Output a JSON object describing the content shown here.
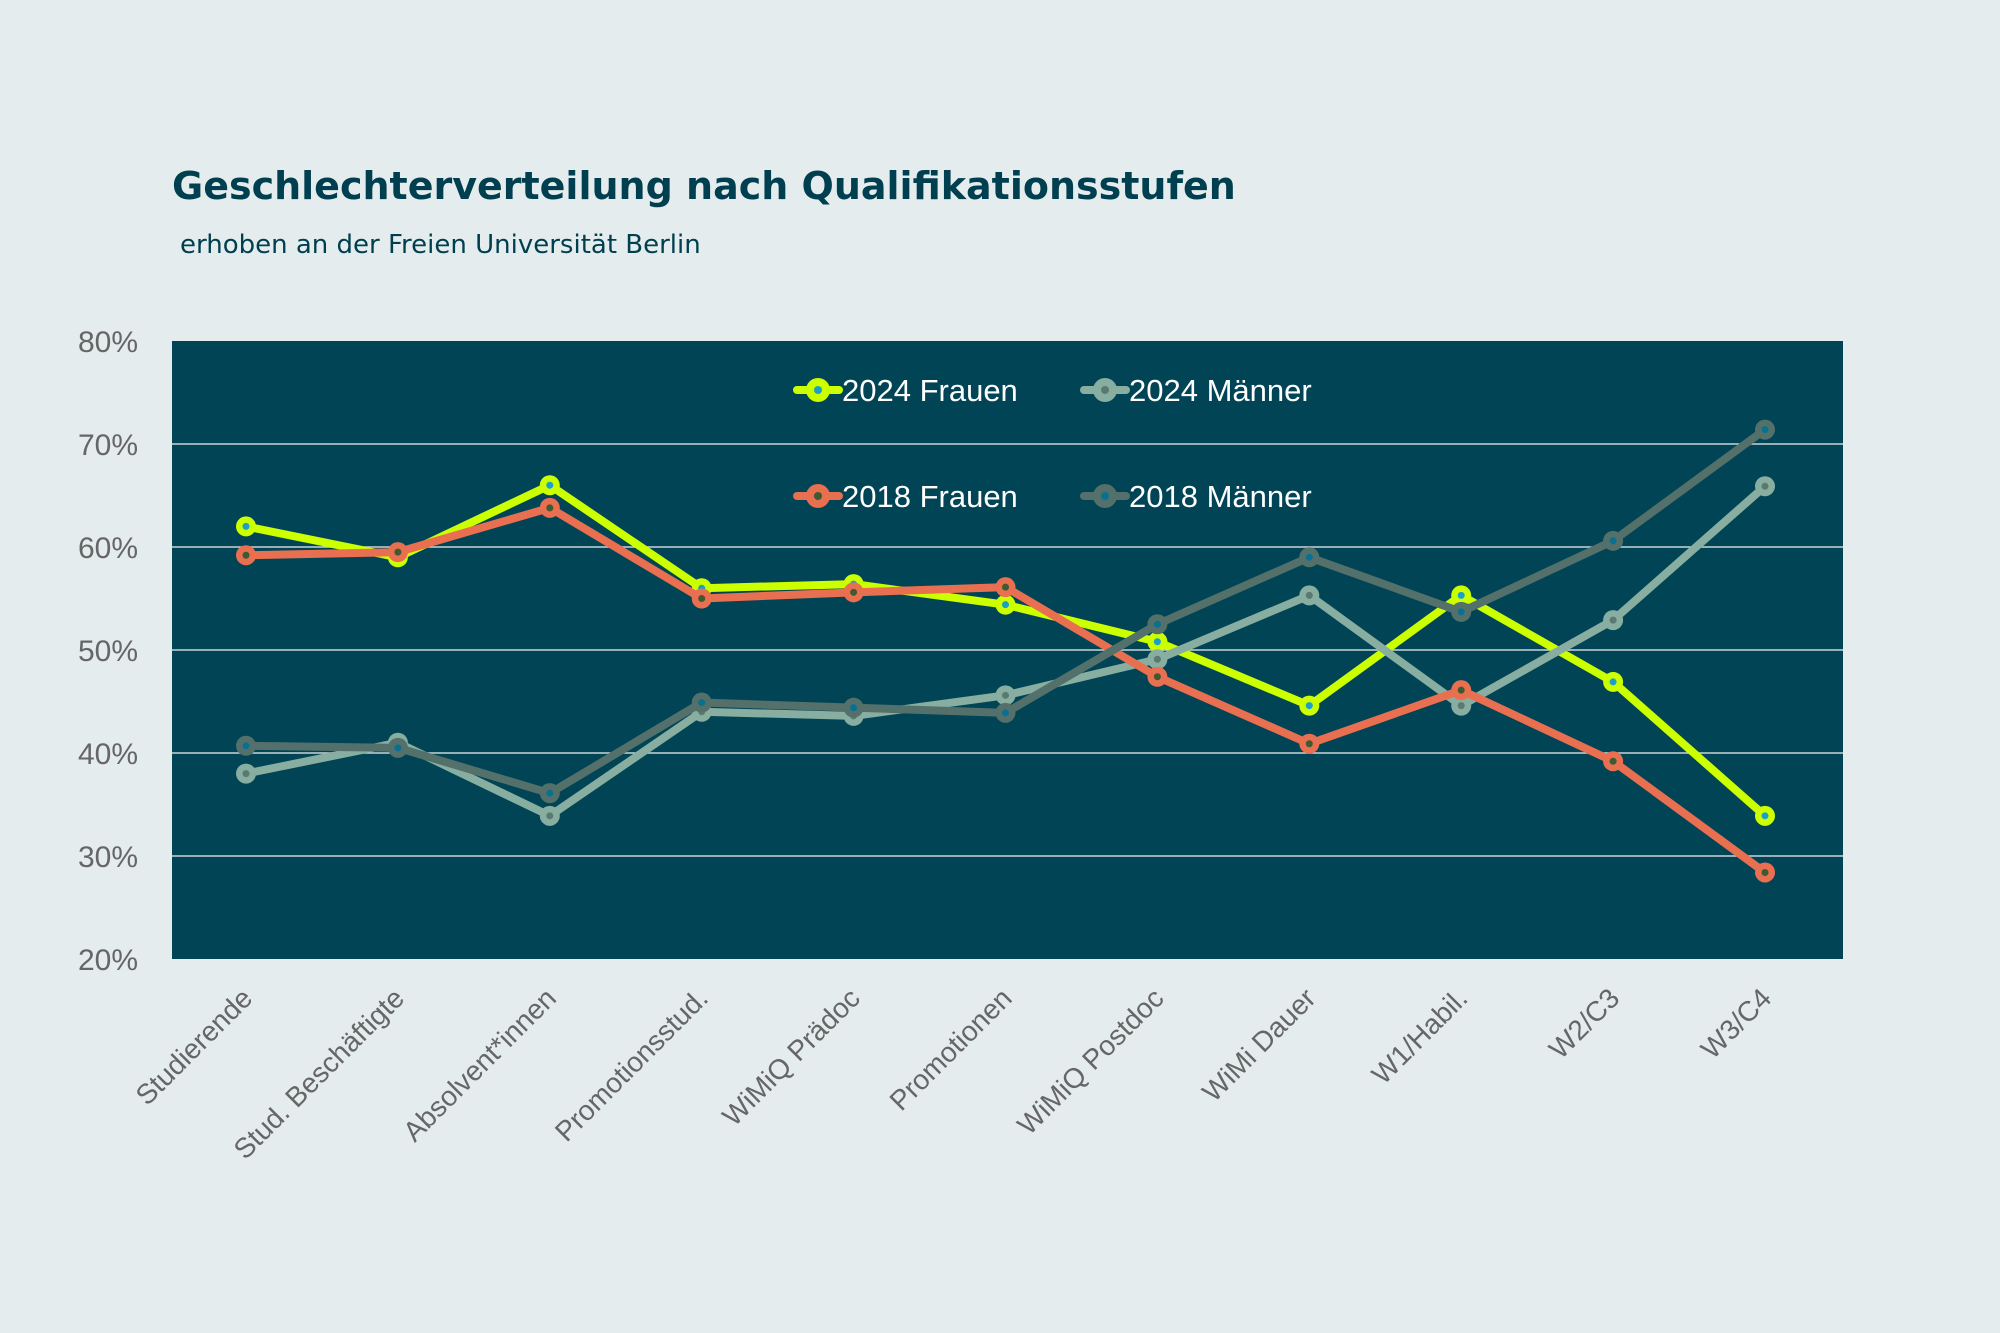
{
  "chart_data": {
    "type": "line",
    "title": "Geschlechterverteilung nach Qualifikationsstufen",
    "subtitle": "erhoben an der Freien Universität Berlin",
    "categories": [
      "Studierende",
      "Stud. Beschäftigte",
      "Absolvent*innen",
      "Promotionsstud.",
      "WiMiQ Prädoc",
      "Promotionen",
      "WiMiQ Postdoc",
      "WiMi Dauer",
      "W1/Habil.",
      "W2/C3",
      "W3/C4"
    ],
    "ylim": [
      20,
      80
    ],
    "yticks": [
      20,
      30,
      40,
      50,
      60,
      70,
      80
    ],
    "ytick_labels": [
      "20%",
      "30%",
      "40%",
      "50%",
      "60%",
      "70%",
      "80%"
    ],
    "grid": true,
    "legend_placement": "top-center",
    "plot_background": "#004455",
    "series": [
      {
        "name": "2024 Frauen",
        "color": "#ccff00",
        "dot": "#1aa0c8",
        "values": [
          62.0,
          59.0,
          66.0,
          56.0,
          56.4,
          54.4,
          50.8,
          44.6,
          55.3,
          46.9,
          33.9
        ]
      },
      {
        "name": "2024 Männer",
        "color": "#87aea0",
        "dot": "#5a7a70",
        "values": [
          38.0,
          41.0,
          33.9,
          44.0,
          43.6,
          45.6,
          49.1,
          55.3,
          44.6,
          52.9,
          65.9
        ]
      },
      {
        "name": "2018 Frauen",
        "color": "#e86f50",
        "dot": "#3d5a30",
        "values": [
          59.2,
          59.5,
          63.8,
          55.0,
          55.6,
          56.1,
          47.4,
          40.9,
          46.1,
          39.2,
          28.4
        ]
      },
      {
        "name": "2018 Männer",
        "color": "#53706a",
        "dot": "#0a7090",
        "values": [
          40.7,
          40.5,
          36.1,
          44.9,
          44.4,
          43.9,
          52.5,
          59.0,
          53.7,
          60.6,
          71.4
        ]
      }
    ]
  }
}
